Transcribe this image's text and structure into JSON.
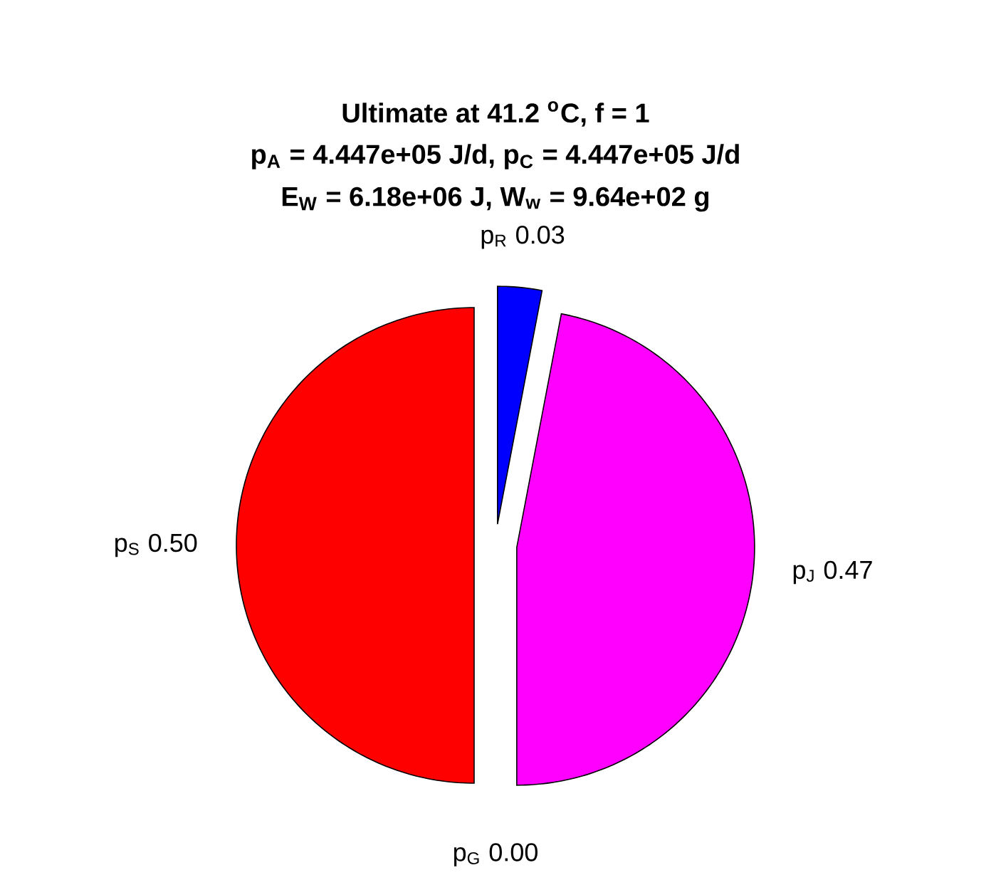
{
  "chart_data": {
    "type": "pie",
    "title": "Ultimate at 41.2 $^{o}$C, f = 1",
    "subtitle": "p$_{A}$ = 4.447e+05 J/d, p$_{C}$ = 4.447e+05 J/d",
    "annotations": [
      "E$_{W}$ = 6.18e+06 J, W$_{w}$ = 9.64e+02 g"
    ],
    "categories": [
      "p$_{R}$",
      "p$_{J}$",
      "p$_{G}$",
      "p$_{S}$"
    ],
    "values": [
      0.03,
      0.47,
      0.0,
      0.5
    ],
    "value_labels": [
      "0.03",
      "0.47",
      "0.00",
      "0.50"
    ],
    "colors": [
      "#0000ff",
      "#ff00ff",
      null,
      "#ff0000"
    ]
  }
}
